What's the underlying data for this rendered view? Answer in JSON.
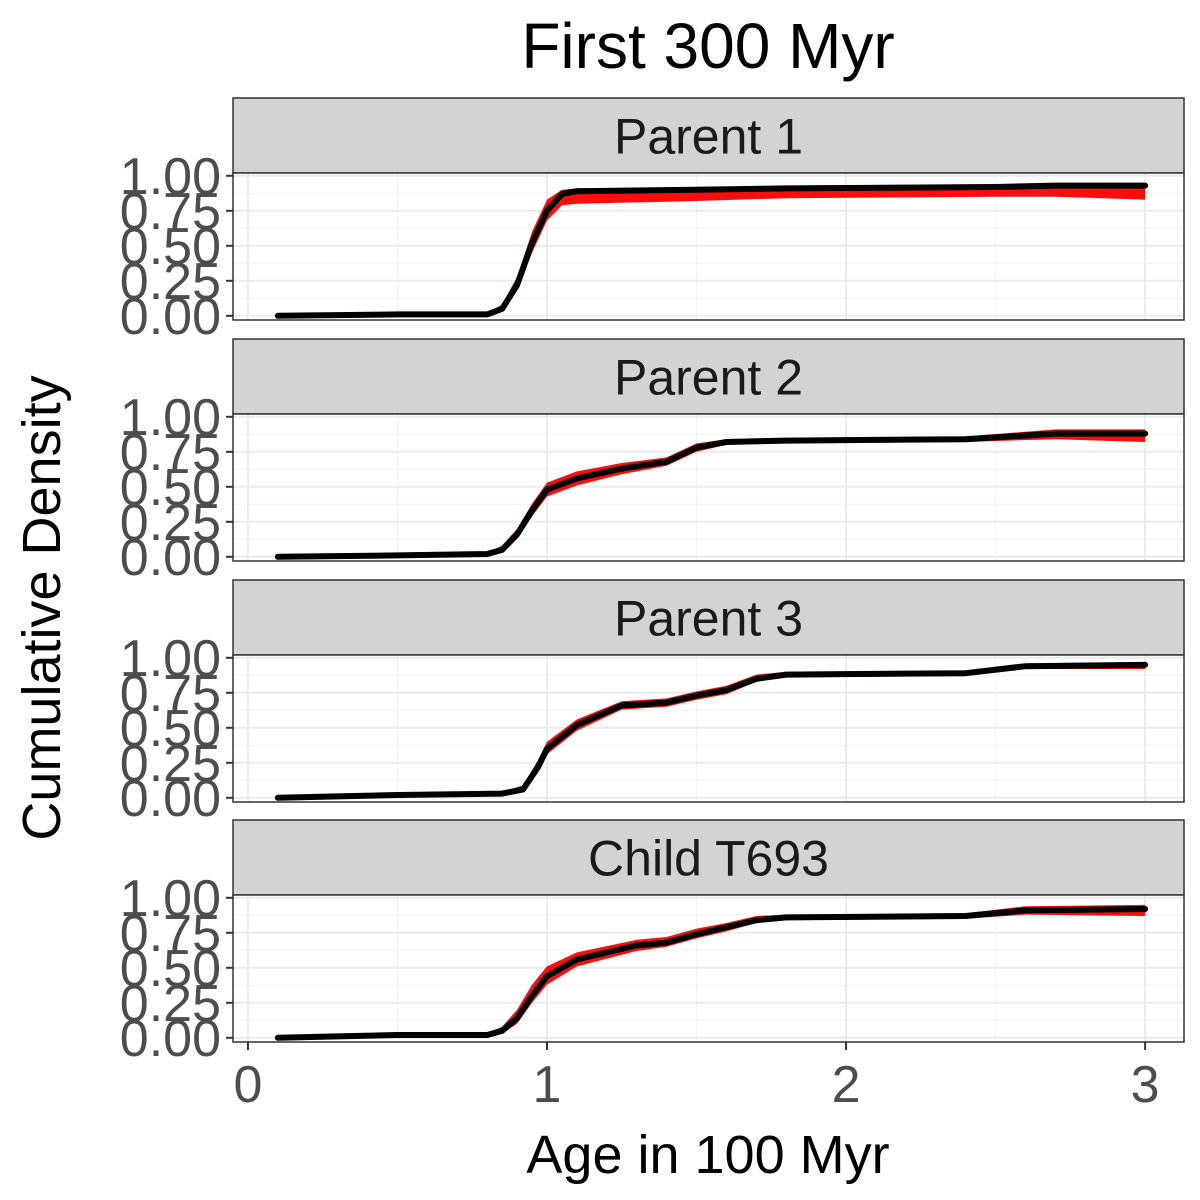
{
  "chart_data": {
    "type": "line",
    "title": "First 300 Myr",
    "xlabel": "Age in 100 Myr",
    "ylabel": "Cumulative Density",
    "xlim": [
      -0.05,
      3.13
    ],
    "ylim": [
      -0.03,
      1.02
    ],
    "x_ticks": [
      "0",
      "1",
      "2",
      "3"
    ],
    "x_tick_values": [
      0,
      1,
      2,
      3
    ],
    "y_ticks": [
      "0.00",
      "0.25",
      "0.50",
      "0.75",
      "1.00"
    ],
    "y_tick_values": [
      0,
      0.25,
      0.5,
      0.75,
      1.0
    ],
    "grid": true,
    "band_color": "#ff0000",
    "line_color": "#000000",
    "strip_color": "#d3d3d3",
    "panels": [
      {
        "label": "Parent 1",
        "x": [
          0.1,
          0.5,
          0.8,
          0.85,
          0.9,
          0.95,
          1.0,
          1.05,
          1.1,
          1.5,
          1.8,
          2.5,
          2.7,
          3.0
        ],
        "y": [
          0.0,
          0.01,
          0.01,
          0.05,
          0.22,
          0.52,
          0.75,
          0.87,
          0.89,
          0.9,
          0.91,
          0.92,
          0.93,
          0.93
        ],
        "lower": [
          0.0,
          0.0,
          0.0,
          0.03,
          0.18,
          0.45,
          0.68,
          0.79,
          0.8,
          0.82,
          0.84,
          0.85,
          0.85,
          0.83
        ],
        "upper": [
          0.01,
          0.02,
          0.02,
          0.08,
          0.28,
          0.6,
          0.83,
          0.9,
          0.91,
          0.92,
          0.93,
          0.94,
          0.95,
          0.95
        ]
      },
      {
        "label": "Parent 2",
        "x": [
          0.1,
          0.5,
          0.8,
          0.85,
          0.9,
          0.95,
          1.0,
          1.1,
          1.25,
          1.4,
          1.5,
          1.6,
          1.8,
          2.4,
          2.7,
          3.0
        ],
        "y": [
          0.0,
          0.01,
          0.02,
          0.05,
          0.16,
          0.33,
          0.48,
          0.56,
          0.63,
          0.68,
          0.78,
          0.82,
          0.83,
          0.84,
          0.88,
          0.88
        ],
        "lower": [
          0.0,
          0.0,
          0.0,
          0.03,
          0.13,
          0.29,
          0.43,
          0.51,
          0.59,
          0.65,
          0.75,
          0.8,
          0.81,
          0.82,
          0.84,
          0.82
        ],
        "upper": [
          0.01,
          0.02,
          0.03,
          0.08,
          0.2,
          0.38,
          0.53,
          0.61,
          0.67,
          0.71,
          0.81,
          0.84,
          0.85,
          0.86,
          0.91,
          0.91
        ]
      },
      {
        "label": "Parent 3",
        "x": [
          0.1,
          0.5,
          0.85,
          0.92,
          0.97,
          1.0,
          1.1,
          1.25,
          1.4,
          1.5,
          1.6,
          1.7,
          1.8,
          2.4,
          2.6,
          3.0
        ],
        "y": [
          0.0,
          0.02,
          0.03,
          0.06,
          0.22,
          0.35,
          0.52,
          0.66,
          0.68,
          0.73,
          0.77,
          0.85,
          0.88,
          0.89,
          0.94,
          0.95
        ],
        "lower": [
          0.0,
          0.01,
          0.02,
          0.04,
          0.18,
          0.31,
          0.48,
          0.63,
          0.65,
          0.7,
          0.74,
          0.83,
          0.86,
          0.87,
          0.92,
          0.92
        ],
        "upper": [
          0.01,
          0.03,
          0.04,
          0.09,
          0.27,
          0.4,
          0.56,
          0.69,
          0.71,
          0.76,
          0.8,
          0.88,
          0.9,
          0.91,
          0.96,
          0.97
        ]
      },
      {
        "label": "Child T693",
        "x": [
          0.1,
          0.5,
          0.8,
          0.85,
          0.9,
          0.95,
          1.0,
          1.1,
          1.3,
          1.4,
          1.5,
          1.6,
          1.7,
          1.8,
          2.4,
          2.6,
          3.0
        ],
        "y": [
          0.0,
          0.02,
          0.02,
          0.05,
          0.14,
          0.3,
          0.44,
          0.56,
          0.66,
          0.68,
          0.74,
          0.79,
          0.84,
          0.86,
          0.87,
          0.91,
          0.92
        ],
        "lower": [
          0.0,
          0.01,
          0.01,
          0.03,
          0.1,
          0.25,
          0.38,
          0.51,
          0.62,
          0.65,
          0.71,
          0.76,
          0.82,
          0.84,
          0.85,
          0.88,
          0.87
        ],
        "upper": [
          0.01,
          0.03,
          0.03,
          0.08,
          0.2,
          0.38,
          0.51,
          0.61,
          0.7,
          0.72,
          0.78,
          0.82,
          0.87,
          0.88,
          0.89,
          0.94,
          0.95
        ]
      }
    ]
  }
}
